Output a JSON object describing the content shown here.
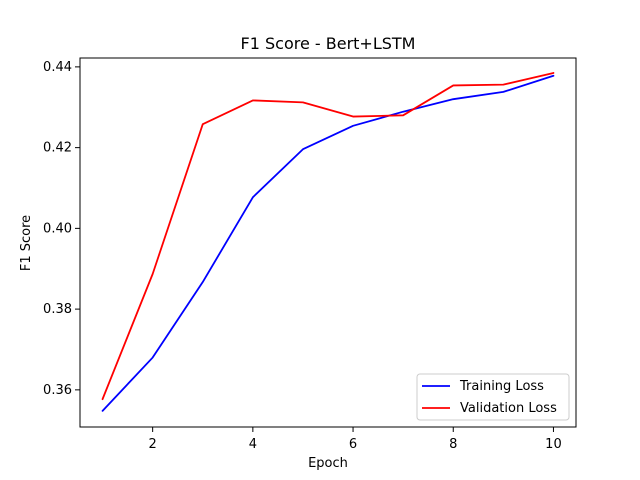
{
  "chart_data": {
    "type": "line",
    "title": "F1 Score - Bert+LSTM",
    "xlabel": "Epoch",
    "ylabel": "F1 Score",
    "x": [
      1,
      2,
      3,
      4,
      5,
      6,
      7,
      8,
      9,
      10
    ],
    "xlim": [
      0.55,
      10.45
    ],
    "ylim": [
      0.3508,
      0.4422
    ],
    "xticks": [
      2,
      4,
      6,
      8,
      10
    ],
    "yticks": [
      0.36,
      0.38,
      0.4,
      0.42,
      0.44
    ],
    "xtick_labels": [
      "2",
      "4",
      "6",
      "8",
      "10"
    ],
    "ytick_labels": [
      "0.36",
      "0.38",
      "0.40",
      "0.42",
      "0.44"
    ],
    "grid": false,
    "legend_position": "lower-right",
    "series": [
      {
        "name": "Training Loss",
        "color": "#0000ff",
        "values": [
          0.3548,
          0.368,
          0.3867,
          0.4077,
          0.4196,
          0.4254,
          0.4289,
          0.432,
          0.4338,
          0.4378
        ]
      },
      {
        "name": "Validation Loss",
        "color": "#ff0000",
        "values": [
          0.3577,
          0.3887,
          0.4258,
          0.4317,
          0.4312,
          0.4277,
          0.428,
          0.4354,
          0.4356,
          0.4385
        ]
      }
    ]
  }
}
